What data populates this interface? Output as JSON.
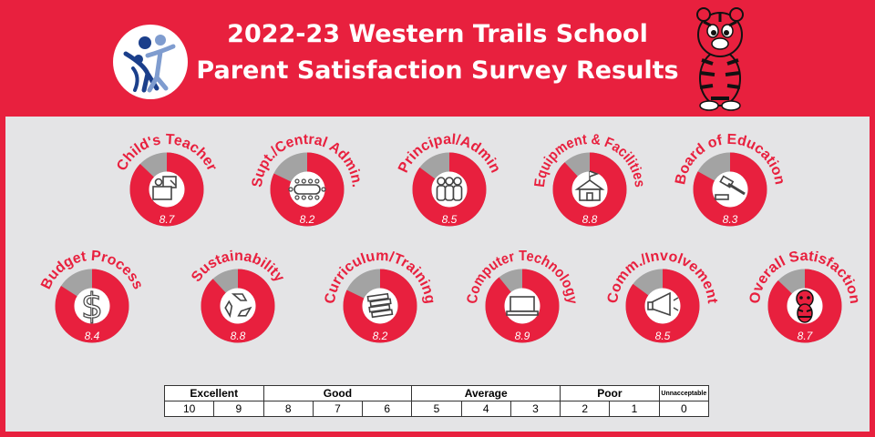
{
  "header": {
    "title_line1": "2022-23 Western Trails School",
    "title_line2": "Parent Satisfaction Survey Results"
  },
  "colors": {
    "accent": "#e8203e",
    "track": "#a3a3a3",
    "panel": "#e4e4e6"
  },
  "chart_data": {
    "type": "donut",
    "max": 10,
    "items": [
      {
        "label": "Child's Teacher",
        "value": 8.7,
        "score": "8.7",
        "icon": "teacher-icon"
      },
      {
        "label": "Supt./Central Admin.",
        "value": 8.2,
        "score": "8.2",
        "icon": "conference-table-icon"
      },
      {
        "label": "Principal/Admin",
        "value": 8.5,
        "score": "8.5",
        "icon": "people-icon"
      },
      {
        "label": "Equipment & Facilities",
        "value": 8.8,
        "score": "8.8",
        "icon": "building-icon"
      },
      {
        "label": "Board of Education",
        "value": 8.3,
        "score": "8.3",
        "icon": "gavel-icon"
      },
      {
        "label": "Budget Process",
        "value": 8.4,
        "score": "8.4",
        "icon": "dollar-icon"
      },
      {
        "label": "Sustainability",
        "value": 8.8,
        "score": "8.8",
        "icon": "recycle-icon"
      },
      {
        "label": "Curriculum/Training",
        "value": 8.2,
        "score": "8.2",
        "icon": "books-icon"
      },
      {
        "label": "Computer Technology",
        "value": 8.9,
        "score": "8.9",
        "icon": "laptop-icon"
      },
      {
        "label": "Comm./Involvement",
        "value": 8.5,
        "score": "8.5",
        "icon": "megaphone-icon"
      },
      {
        "label": "Overall Satisfaction",
        "value": 8.7,
        "score": "8.7",
        "icon": "tiger-icon"
      }
    ]
  },
  "scale": {
    "groups": [
      {
        "label": "Excellent"
      },
      {
        "label": "Good"
      },
      {
        "label": "Average"
      },
      {
        "label": "Poor"
      },
      {
        "label": "Unnacceptable"
      }
    ],
    "values": [
      "10",
      "9",
      "8",
      "7",
      "6",
      "5",
      "4",
      "3",
      "2",
      "1",
      "0"
    ]
  }
}
